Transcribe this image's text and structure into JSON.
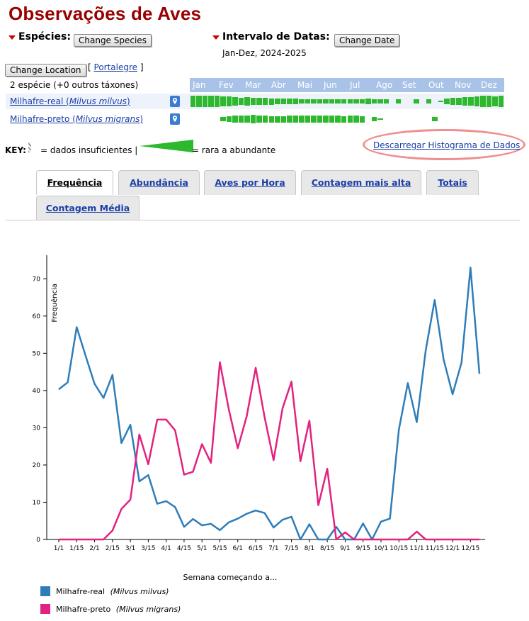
{
  "page_title": "Observações de Aves",
  "species_label": "Espécies:",
  "change_species_label": "Change Species",
  "date_label": "Intervalo de Datas:",
  "change_date_label": "Change Date",
  "date_range": "Jan-Dez, 2024-2025",
  "change_location_label": "Change Location",
  "location_prefix": "[",
  "location_link": "Portalegre",
  "location_suffix": "]",
  "species_count": "2 espécie (+0 outros táxones)",
  "months": [
    "Jan",
    "Fev",
    "Mar",
    "Abr",
    "Mai",
    "Jun",
    "Jul",
    "Ago",
    "Set",
    "Out",
    "Nov",
    "Dez"
  ],
  "species_rows": [
    {
      "common": "Milhafre-real",
      "sci": "Milvus milvus",
      "map_icon": "map-pin-icon",
      "weekly": [
        0.85,
        0.88,
        0.92,
        0.85,
        0.85,
        0.8,
        0.8,
        0.65,
        0.6,
        0.62,
        0.55,
        0.55,
        0.55,
        0.5,
        0.45,
        0.4,
        0.4,
        0.42,
        0.38,
        0.38,
        0.36,
        0.36,
        0.36,
        0.36,
        0.36,
        0.36,
        0.36,
        0.34,
        0.36,
        0.4,
        0.34,
        0.34,
        0.36,
        0,
        0.3,
        0,
        0,
        0.3,
        0,
        0.3,
        0,
        0.15,
        0.45,
        0.55,
        0.6,
        0.7,
        0.65,
        0.8,
        0.85,
        0.85,
        0.8,
        0.85
      ]
    },
    {
      "common": "Milhafre-preto",
      "sci": "Milvus migrans",
      "map_icon": "map-pin-icon",
      "weekly": [
        0,
        0,
        0,
        0,
        0,
        0.3,
        0.45,
        0.55,
        0.55,
        0.6,
        0.62,
        0.55,
        0.55,
        0.5,
        0.5,
        0.5,
        0.55,
        0.6,
        0.55,
        0.55,
        0.6,
        0.6,
        0.55,
        0.6,
        0.55,
        0.5,
        0.6,
        0.55,
        0.5,
        0,
        0.3,
        0.15,
        0,
        0,
        0,
        0,
        0,
        0,
        0,
        0,
        0.3,
        0,
        0,
        0,
        0,
        0,
        0,
        0,
        0,
        0,
        0,
        0
      ]
    }
  ],
  "key_label": "KEY:",
  "key_insufficient": "= dados insuficientes |",
  "key_rare": "= rara a abundante",
  "download_link": "Descarregar Histograma de Dados",
  "tabs": [
    "Frequência",
    "Abundância",
    "Aves por Hora",
    "Contagem mais alta",
    "Totais",
    "Contagem Média"
  ],
  "active_tab": "Frequência",
  "colors": {
    "series1": "#2e7db9",
    "series2": "#e3217f",
    "title": "#990000",
    "histogram": "#2eb82e"
  },
  "chart_data": {
    "type": "line",
    "ylabel": "Frequência",
    "xlabel": "Semana começando a...",
    "ylim": [
      0,
      75
    ],
    "yticks": [
      0,
      10,
      20,
      30,
      40,
      50,
      60,
      70
    ],
    "xtick_labels": [
      "1/1",
      "1/15",
      "2/1",
      "2/15",
      "3/1",
      "3/15",
      "4/1",
      "4/15",
      "5/1",
      "5/15",
      "6/1",
      "6/15",
      "7/1",
      "7/15",
      "8/1",
      "8/15",
      "9/1",
      "9/15",
      "10/1",
      "10/15",
      "11/1",
      "11/15",
      "12/1",
      "12/15"
    ],
    "x": [
      1,
      2,
      3,
      4,
      5,
      6,
      7,
      8,
      9,
      10,
      11,
      12,
      13,
      14,
      15,
      16,
      17,
      18,
      19,
      20,
      21,
      22,
      23,
      24,
      25,
      26,
      27,
      28,
      29,
      30,
      31,
      32,
      33,
      34,
      35,
      36,
      37,
      38,
      39,
      40,
      41,
      42,
      43,
      44,
      45,
      46,
      47,
      48
    ],
    "series": [
      {
        "name": "Milhafre-real",
        "sci": "Milvus milvus",
        "values": [
          40.3,
          42.2,
          57,
          49.3,
          41.8,
          38,
          44.2,
          25.9,
          30.8,
          15.6,
          17.3,
          9.6,
          10.3,
          8.7,
          3.4,
          5.5,
          3.8,
          4.2,
          2.5,
          4.6,
          5.6,
          6.9,
          7.8,
          7.1,
          3.2,
          5.3,
          6.1,
          0,
          4.1,
          0,
          0,
          3.4,
          0,
          0,
          4.3,
          0,
          4.8,
          5.6,
          29.5,
          42,
          31.5,
          50.8,
          64.3,
          48.3,
          39,
          47.5,
          73,
          44.5
        ]
      },
      {
        "name": "Milhafre-preto",
        "sci": "Milvus migrans",
        "values": [
          0,
          0,
          0,
          0,
          0,
          0,
          2.4,
          8.2,
          10.7,
          28.2,
          20.2,
          32.2,
          32.2,
          29.3,
          17.4,
          18.2,
          25.6,
          20.6,
          47.6,
          34.9,
          24.5,
          33.1,
          46.1,
          32.8,
          21.3,
          35.2,
          42.4,
          21,
          31.9,
          9.2,
          19,
          0,
          1.9,
          0,
          0,
          0,
          0,
          0,
          0,
          0,
          2.1,
          0,
          0,
          0,
          0,
          0,
          0,
          0
        ]
      }
    ],
    "legend_placement": "bottom-left"
  }
}
